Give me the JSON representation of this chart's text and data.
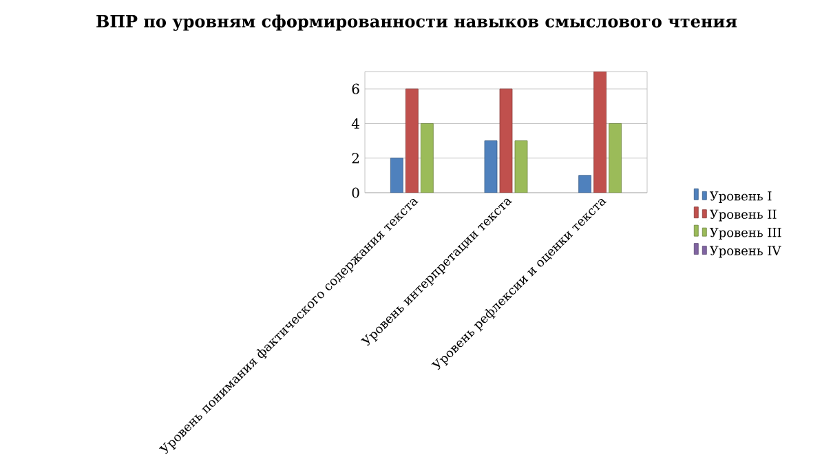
{
  "chart_data": {
    "type": "bar",
    "title": "ВПР по уровням сформированности навыков смыслового чтения",
    "categories": [
      "Уровень понимания фактического содержания текста",
      "Уровень интерпретации текста",
      "Уровень рефлексии и оценки текста"
    ],
    "series": [
      {
        "name": "Уровень I",
        "color": "#4f81bd",
        "values": [
          2,
          3,
          1
        ]
      },
      {
        "name": "Уровень II",
        "color": "#c0504d",
        "values": [
          6,
          6,
          7
        ]
      },
      {
        "name": "Уровень III",
        "color": "#9bbb59",
        "values": [
          4,
          3,
          4
        ]
      },
      {
        "name": "Уровень IV",
        "color": "#8064a2",
        "values": [
          null,
          null,
          null
        ]
      }
    ],
    "ylim": [
      0,
      7
    ],
    "yticks": [
      0,
      2,
      4,
      6
    ],
    "grid": "y",
    "legend": "right"
  }
}
